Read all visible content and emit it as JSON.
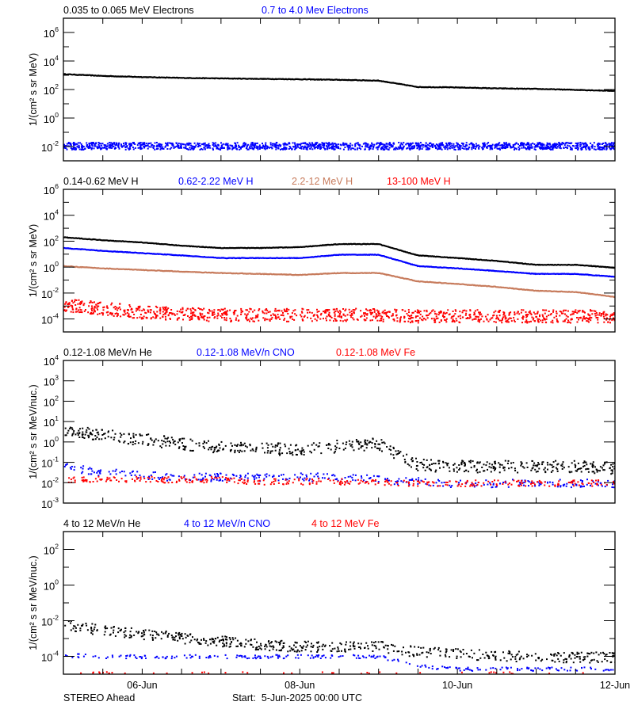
{
  "footer": {
    "spacecraft": "STEREO Ahead",
    "start_label": "Start:  5-Jun-2025 00:00 UTC"
  },
  "colors": {
    "black": "#000000",
    "blue": "#0000ff",
    "brown": "#c77b5c",
    "red": "#ff0000"
  },
  "chart_data": [
    {
      "type": "scatter",
      "yscale": "log",
      "ylabel": "1/(cm² s sr MeV)",
      "ylim": [
        0.001,
        10000000
      ],
      "yticks_exp": [
        6,
        4,
        2,
        0,
        -2
      ],
      "xlim": [
        "2025-06-05T00:00",
        "2025-06-12T00:00"
      ],
      "xtick_labels": [],
      "x": [
        "2025-06-05T00:00",
        "2025-06-05T12:00",
        "2025-06-06T00:00",
        "2025-06-06T12:00",
        "2025-06-07T00:00",
        "2025-06-07T12:00",
        "2025-06-08T00:00",
        "2025-06-08T12:00",
        "2025-06-09T00:00",
        "2025-06-09T12:00",
        "2025-06-10T00:00",
        "2025-06-10T12:00",
        "2025-06-11T00:00",
        "2025-06-11T12:00",
        "2025-06-12T00:00"
      ],
      "series": [
        {
          "name": "0.035 to 0.065 MeV Electrons",
          "color": "#000000",
          "values": [
            1200,
            900,
            750,
            650,
            600,
            560,
            520,
            480,
            420,
            150,
            140,
            120,
            110,
            95,
            80
          ]
        },
        {
          "name": "0.7 to 4.0 Mev Electrons",
          "color": "#0000ff",
          "values": [
            0.012,
            0.012,
            0.012,
            0.012,
            0.012,
            0.012,
            0.012,
            0.012,
            0.012,
            0.012,
            0.012,
            0.012,
            0.012,
            0.012,
            0.012
          ]
        }
      ]
    },
    {
      "type": "scatter",
      "yscale": "log",
      "ylabel": "1/(cm² s sr MeV)",
      "ylim": [
        1e-05,
        1000000
      ],
      "yticks_exp": [
        6,
        4,
        2,
        0,
        -2,
        -4
      ],
      "xlim": [
        "2025-06-05T00:00",
        "2025-06-12T00:00"
      ],
      "xtick_labels": [],
      "x": [
        "2025-06-05T00:00",
        "2025-06-05T12:00",
        "2025-06-06T00:00",
        "2025-06-06T12:00",
        "2025-06-07T00:00",
        "2025-06-07T12:00",
        "2025-06-08T00:00",
        "2025-06-08T12:00",
        "2025-06-09T00:00",
        "2025-06-09T12:00",
        "2025-06-10T00:00",
        "2025-06-10T12:00",
        "2025-06-11T00:00",
        "2025-06-11T12:00",
        "2025-06-12T00:00"
      ],
      "series": [
        {
          "name": "0.14-0.62 MeV H",
          "color": "#000000",
          "values": [
            200,
            120,
            80,
            45,
            30,
            30,
            35,
            60,
            60,
            8,
            5,
            3,
            1.5,
            1.5,
            0.9
          ]
        },
        {
          "name": "0.62-2.22 MeV H",
          "color": "#0000ff",
          "values": [
            30,
            18,
            12,
            8,
            5,
            5,
            5,
            9,
            9,
            1.2,
            0.8,
            0.5,
            0.3,
            0.3,
            0.18
          ]
        },
        {
          "name": "2.2-12 MeV H",
          "color": "#c77b5c",
          "values": [
            1.2,
            0.8,
            0.6,
            0.45,
            0.35,
            0.3,
            0.25,
            0.35,
            0.35,
            0.08,
            0.05,
            0.03,
            0.015,
            0.012,
            0.005
          ]
        },
        {
          "name": "13-100 MeV H",
          "color": "#ff0000",
          "values": [
            0.0015,
            0.0008,
            0.0004,
            0.0003,
            0.00025,
            0.00025,
            0.00025,
            0.00025,
            0.00025,
            0.0002,
            0.0002,
            0.0002,
            0.0002,
            0.0002,
            0.0002
          ]
        }
      ]
    },
    {
      "type": "scatter",
      "yscale": "log",
      "ylabel": "1/(cm² s sr MeV/nuc.)",
      "ylim": [
        0.001,
        10000
      ],
      "yticks_exp": [
        4,
        3,
        2,
        1,
        0,
        -1,
        -2,
        -3
      ],
      "xlim": [
        "2025-06-05T00:00",
        "2025-06-12T00:00"
      ],
      "xtick_labels": [],
      "x": [
        "2025-06-05T00:00",
        "2025-06-05T12:00",
        "2025-06-06T00:00",
        "2025-06-06T12:00",
        "2025-06-07T00:00",
        "2025-06-07T12:00",
        "2025-06-08T00:00",
        "2025-06-08T12:00",
        "2025-06-09T00:00",
        "2025-06-09T12:00",
        "2025-06-10T00:00",
        "2025-06-10T12:00",
        "2025-06-11T00:00",
        "2025-06-11T12:00",
        "2025-06-12T00:00"
      ],
      "series": [
        {
          "name": "0.12-1.08 MeV/n He",
          "color": "#000000",
          "values": [
            4,
            2.5,
            1.5,
            0.9,
            0.6,
            0.5,
            0.5,
            0.7,
            0.9,
            0.08,
            0.07,
            0.07,
            0.07,
            0.07,
            0.06
          ]
        },
        {
          "name": "0.12-1.08 MeV/n CNO",
          "color": "#0000ff",
          "values": [
            0.06,
            0.035,
            0.025,
            0.02,
            0.02,
            0.02,
            0.02,
            0.02,
            0.015,
            0.012,
            0.01,
            0.01,
            0.01,
            0.01,
            0.01
          ]
        },
        {
          "name": "0.12-1.08 MeV Fe",
          "color": "#ff0000",
          "values": [
            0.015,
            0.015,
            0.015,
            0.015,
            0.015,
            0.012,
            0.012,
            0.012,
            0.011,
            0.01,
            0.01,
            0.01,
            0.01,
            0.01,
            0.01
          ]
        }
      ]
    },
    {
      "type": "scatter",
      "yscale": "log",
      "ylabel": "1/(cm² s sr MeV/nuc.)",
      "ylim": [
        1e-05,
        1000
      ],
      "yticks_exp": [
        2,
        0,
        -2,
        -4
      ],
      "xlim": [
        "2025-06-05T00:00",
        "2025-06-12T00:00"
      ],
      "xtick_labels": [
        {
          "date": "2025-06-06T00:00",
          "label": "06-Jun"
        },
        {
          "date": "2025-06-08T00:00",
          "label": "08-Jun"
        },
        {
          "date": "2025-06-10T00:00",
          "label": "10-Jun"
        },
        {
          "date": "2025-06-12T00:00",
          "label": "12-Jun"
        }
      ],
      "x": [
        "2025-06-05T00:00",
        "2025-06-05T12:00",
        "2025-06-06T00:00",
        "2025-06-06T12:00",
        "2025-06-07T00:00",
        "2025-06-07T12:00",
        "2025-06-08T00:00",
        "2025-06-08T12:00",
        "2025-06-09T00:00",
        "2025-06-09T12:00",
        "2025-06-10T00:00",
        "2025-06-10T12:00",
        "2025-06-11T00:00",
        "2025-06-11T12:00",
        "2025-06-12T00:00"
      ],
      "series": [
        {
          "name": "4 to 12 MeV/n He",
          "color": "#000000",
          "values": [
            0.007,
            0.003,
            0.002,
            0.0012,
            0.0008,
            0.0005,
            0.0004,
            0.0004,
            0.0004,
            0.0002,
            0.00015,
            0.00012,
            0.0001,
            0.0001,
            0.0001
          ]
        },
        {
          "name": "4 to 12 MeV/n CNO",
          "color": "#0000ff",
          "values": [
            0.00012,
            0.0001,
            0.0001,
            0.0001,
            0.0001,
            0.0001,
            0.0001,
            0.0001,
            0.0001,
            3e-05,
            2e-05,
            2e-05,
            2e-05,
            2e-05,
            2e-05
          ]
        },
        {
          "name": "4 to 12 MeV Fe",
          "color": "#ff0000",
          "values": [
            1.2e-05,
            1.2e-05,
            1.2e-05,
            1.2e-05,
            1.2e-05,
            1.2e-05,
            1.2e-05,
            1.2e-05,
            1.2e-05,
            1.2e-05,
            1.2e-05,
            1.2e-05,
            1.2e-05,
            1.2e-05,
            1.2e-05
          ]
        }
      ]
    }
  ]
}
